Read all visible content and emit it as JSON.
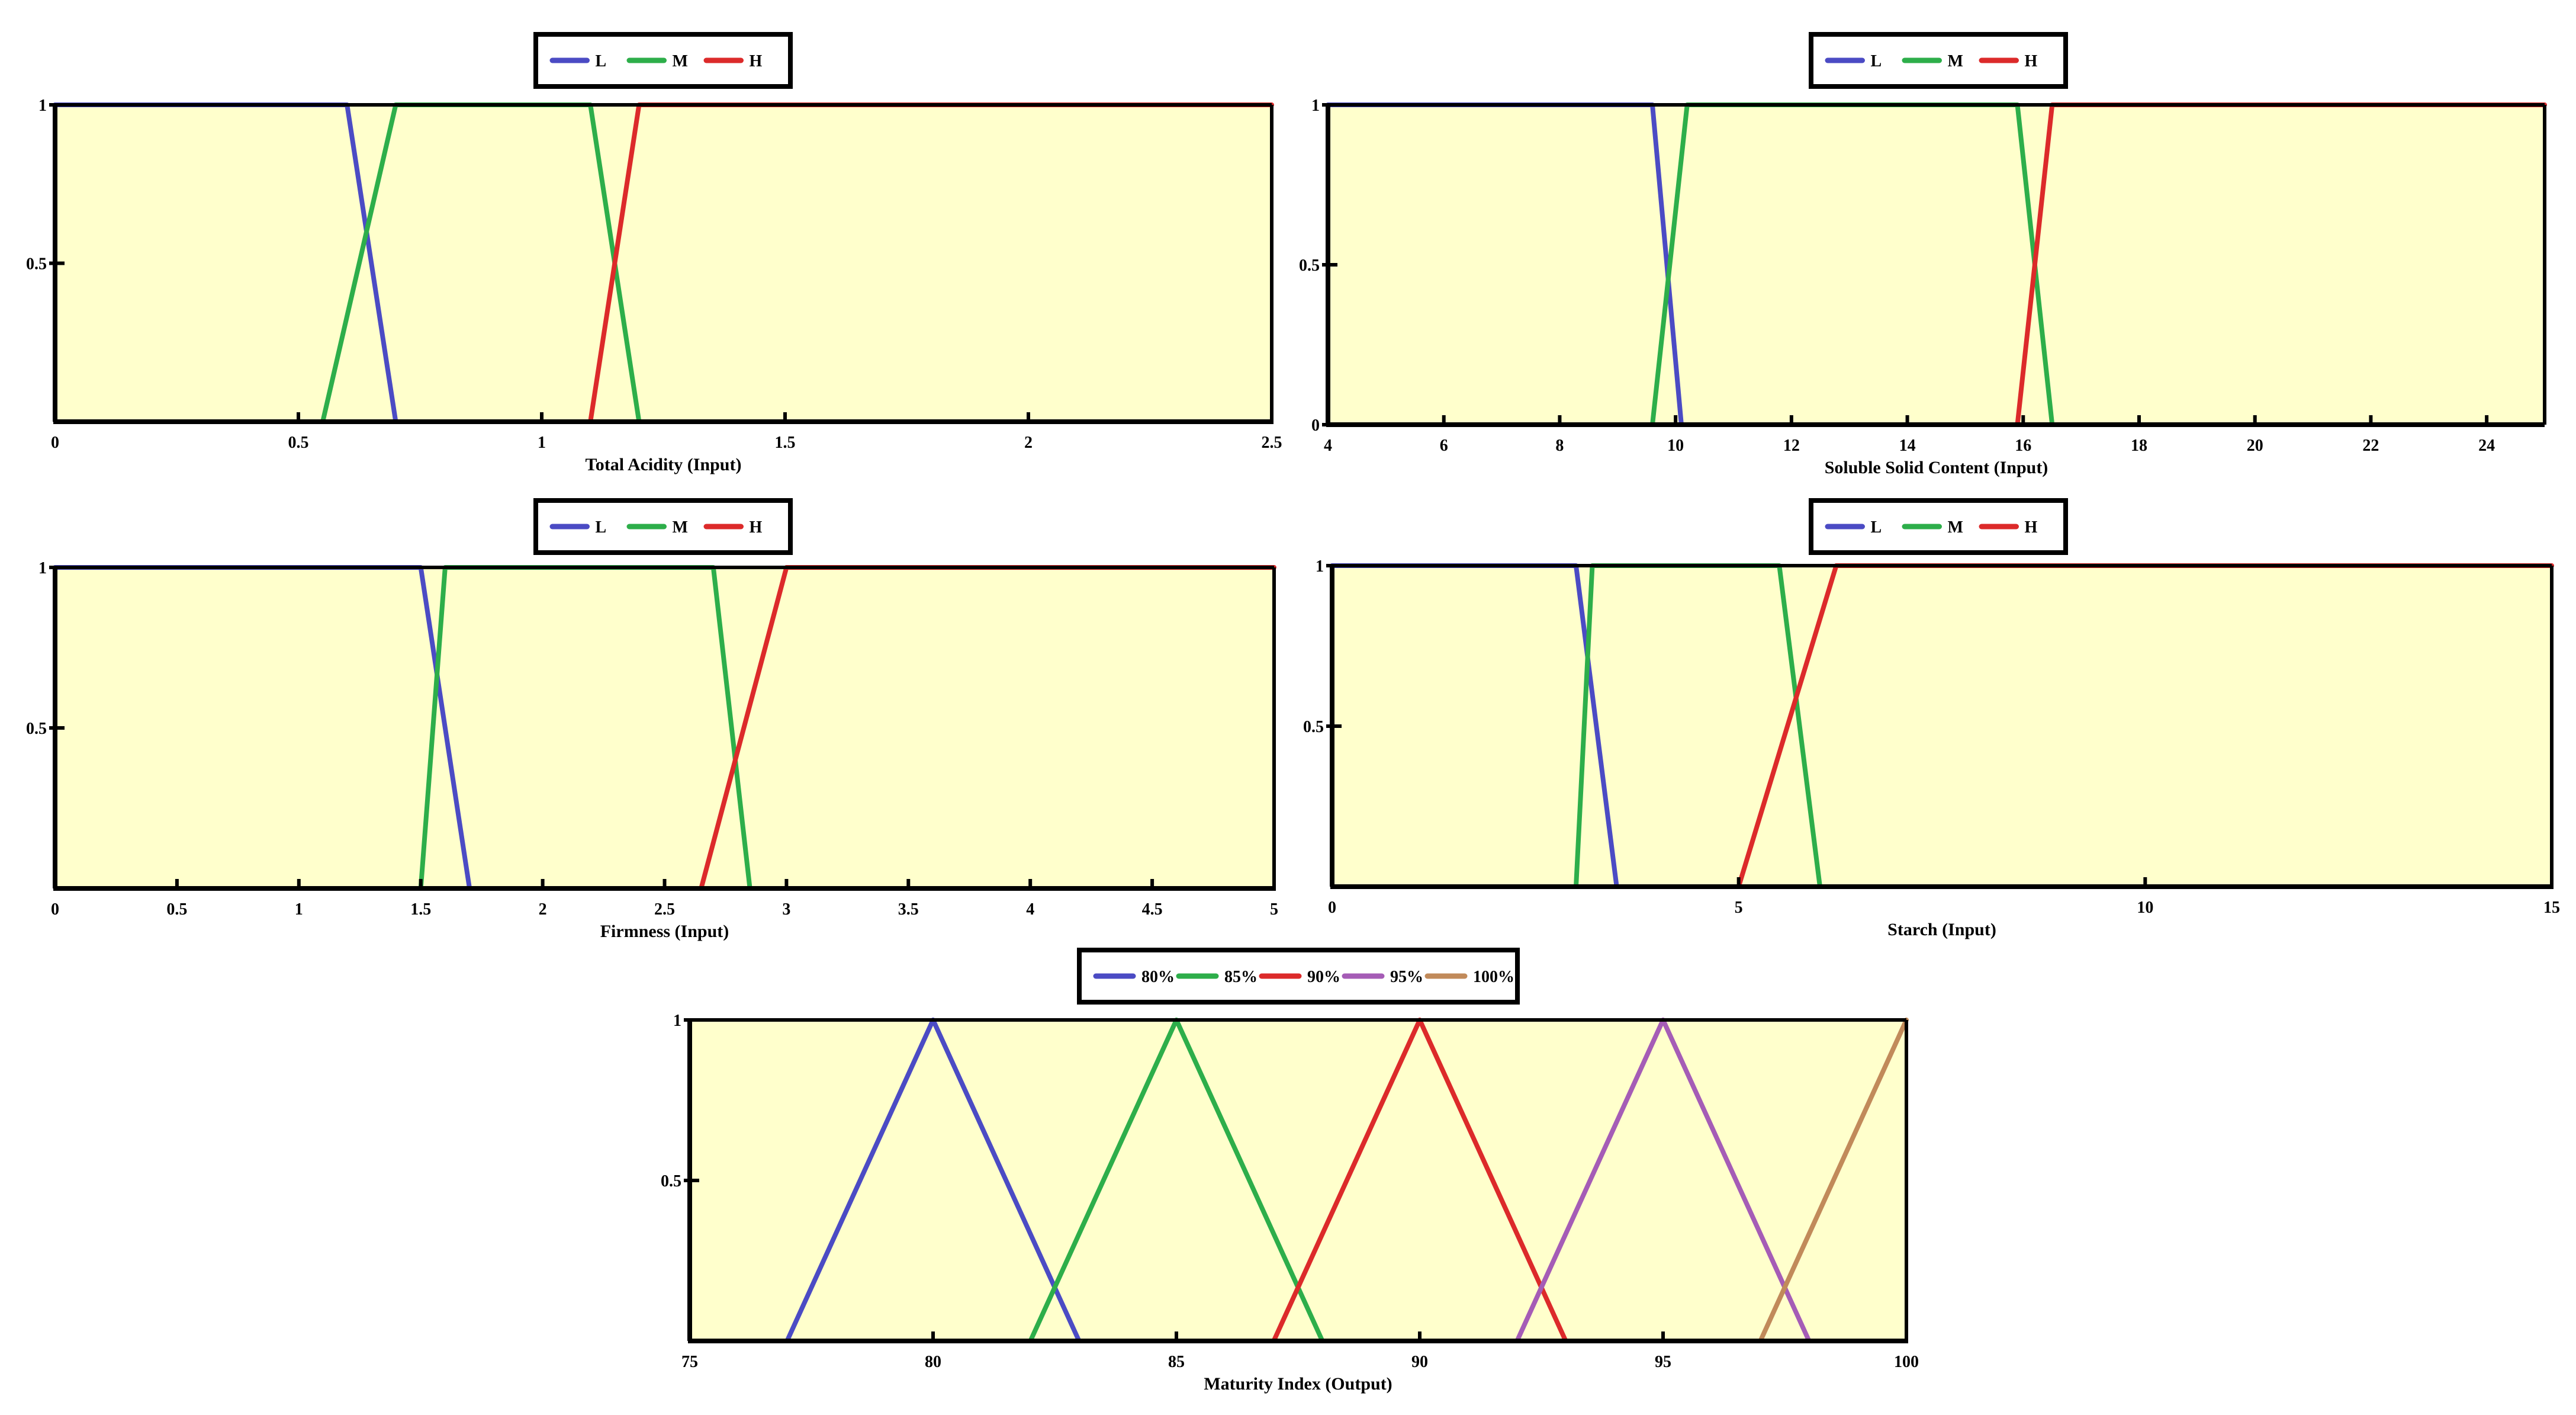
{
  "colors": {
    "plot_bg": "#FFFFCC",
    "axis": "#000000",
    "blue": "#4B4BC4",
    "green": "#2DAE4A",
    "red": "#DC2A2A",
    "purple": "#A55CB6",
    "brown": "#C18A5A"
  },
  "chart_data": [
    {
      "id": "total-acidity",
      "type": "line",
      "xlabel": "Total Acidity (Input)",
      "xlim": [
        0,
        2.5
      ],
      "ylim": [
        0,
        1
      ],
      "xticks": [
        0,
        0.5,
        1,
        1.5,
        2,
        2.5
      ],
      "xtick_labels": [
        "0",
        "0.5",
        "1",
        "1.5",
        "2",
        "2.5"
      ],
      "yticks": [
        1,
        0.5
      ],
      "ytick_labels": [
        "1",
        "0.5"
      ],
      "legend_position": "top-center",
      "series": [
        {
          "name": "L",
          "color": "#4B4BC4",
          "x": [
            0,
            0.6,
            0.7
          ],
          "y": [
            1,
            1,
            0
          ]
        },
        {
          "name": "M",
          "color": "#2DAE4A",
          "x": [
            0.55,
            0.7,
            1.1,
            1.2
          ],
          "y": [
            0,
            1,
            1,
            0
          ]
        },
        {
          "name": "H",
          "color": "#DC2A2A",
          "x": [
            1.1,
            1.2,
            2.5
          ],
          "y": [
            0,
            1,
            1
          ]
        }
      ]
    },
    {
      "id": "soluble-solid-content",
      "type": "line",
      "xlabel": "Soluble Solid Content (Input)",
      "xlim": [
        4,
        25
      ],
      "ylim": [
        0,
        1
      ],
      "xticks": [
        4,
        6,
        8,
        10,
        12,
        14,
        16,
        18,
        20,
        22,
        24
      ],
      "xtick_labels": [
        "4",
        "6",
        "8",
        "10",
        "12",
        "14",
        "16",
        "18",
        "20",
        "22",
        "24"
      ],
      "yticks": [
        1,
        0.5,
        0
      ],
      "ytick_labels": [
        "1",
        "0.5",
        "0"
      ],
      "legend_position": "top-center",
      "series": [
        {
          "name": "L",
          "color": "#4B4BC4",
          "x": [
            4,
            9.6,
            10.1
          ],
          "y": [
            1,
            1,
            0
          ]
        },
        {
          "name": "M",
          "color": "#2DAE4A",
          "x": [
            9.6,
            10.2,
            15.9,
            16.5
          ],
          "y": [
            0,
            1,
            1,
            0
          ]
        },
        {
          "name": "H",
          "color": "#DC2A2A",
          "x": [
            15.9,
            16.5,
            25
          ],
          "y": [
            0,
            1,
            1
          ]
        }
      ]
    },
    {
      "id": "firmness",
      "type": "line",
      "xlabel": "Firmness (Input)",
      "xlim": [
        0,
        5
      ],
      "ylim": [
        0,
        1
      ],
      "xticks": [
        0,
        0.5,
        1,
        1.5,
        2,
        2.5,
        3,
        3.5,
        4,
        4.5,
        5
      ],
      "xtick_labels": [
        "0",
        "0.5",
        "1",
        "1.5",
        "2",
        "2.5",
        "3",
        "3.5",
        "4",
        "4.5",
        "5"
      ],
      "yticks": [
        1,
        0.5
      ],
      "ytick_labels": [
        "1",
        "0.5"
      ],
      "legend_position": "top-center",
      "series": [
        {
          "name": "L",
          "color": "#4B4BC4",
          "x": [
            0,
            1.5,
            1.7
          ],
          "y": [
            1,
            1,
            0
          ]
        },
        {
          "name": "M",
          "color": "#2DAE4A",
          "x": [
            1.5,
            1.6,
            2.7,
            2.85
          ],
          "y": [
            0,
            1,
            1,
            0
          ]
        },
        {
          "name": "H",
          "color": "#DC2A2A",
          "x": [
            2.65,
            3.0,
            5
          ],
          "y": [
            0,
            1,
            1
          ]
        }
      ]
    },
    {
      "id": "starch",
      "type": "line",
      "xlabel": "Starch (Input)",
      "xlim": [
        0,
        15
      ],
      "ylim": [
        0,
        1
      ],
      "xticks": [
        0,
        5,
        10,
        15
      ],
      "xtick_labels": [
        "0",
        "5",
        "10",
        "15"
      ],
      "yticks": [
        1,
        0.5
      ],
      "ytick_labels": [
        "1",
        "0.5"
      ],
      "legend_position": "top-center",
      "series": [
        {
          "name": "L",
          "color": "#4B4BC4",
          "x": [
            0,
            3.0,
            3.5
          ],
          "y": [
            1,
            1,
            0
          ]
        },
        {
          "name": "M",
          "color": "#2DAE4A",
          "x": [
            3.0,
            3.2,
            5.5,
            6.0
          ],
          "y": [
            0,
            1,
            1,
            0
          ]
        },
        {
          "name": "H",
          "color": "#DC2A2A",
          "x": [
            5.0,
            6.2,
            15
          ],
          "y": [
            0,
            1,
            1
          ]
        }
      ]
    },
    {
      "id": "maturity-index",
      "type": "line",
      "xlabel": "Maturity Index (Output)",
      "xlim": [
        75,
        100
      ],
      "ylim": [
        0,
        1
      ],
      "xticks": [
        75,
        80,
        85,
        90,
        95,
        100
      ],
      "xtick_labels": [
        "75",
        "80",
        "85",
        "90",
        "95",
        "100"
      ],
      "yticks": [
        1,
        0.5
      ],
      "ytick_labels": [
        "1",
        "0.5"
      ],
      "legend_position": "top-center",
      "series": [
        {
          "name": "80%",
          "color": "#4B4BC4",
          "x": [
            77,
            80,
            83
          ],
          "y": [
            0,
            1,
            0
          ]
        },
        {
          "name": "85%",
          "color": "#2DAE4A",
          "x": [
            82,
            85,
            88
          ],
          "y": [
            0,
            1,
            0
          ]
        },
        {
          "name": "90%",
          "color": "#DC2A2A",
          "x": [
            87,
            90,
            93
          ],
          "y": [
            0,
            1,
            0
          ]
        },
        {
          "name": "95%",
          "color": "#A55CB6",
          "x": [
            92,
            95,
            98
          ],
          "y": [
            0,
            1,
            0
          ]
        },
        {
          "name": "100%",
          "color": "#C18A5A",
          "x": [
            97,
            100
          ],
          "y": [
            0,
            1
          ]
        }
      ]
    }
  ]
}
